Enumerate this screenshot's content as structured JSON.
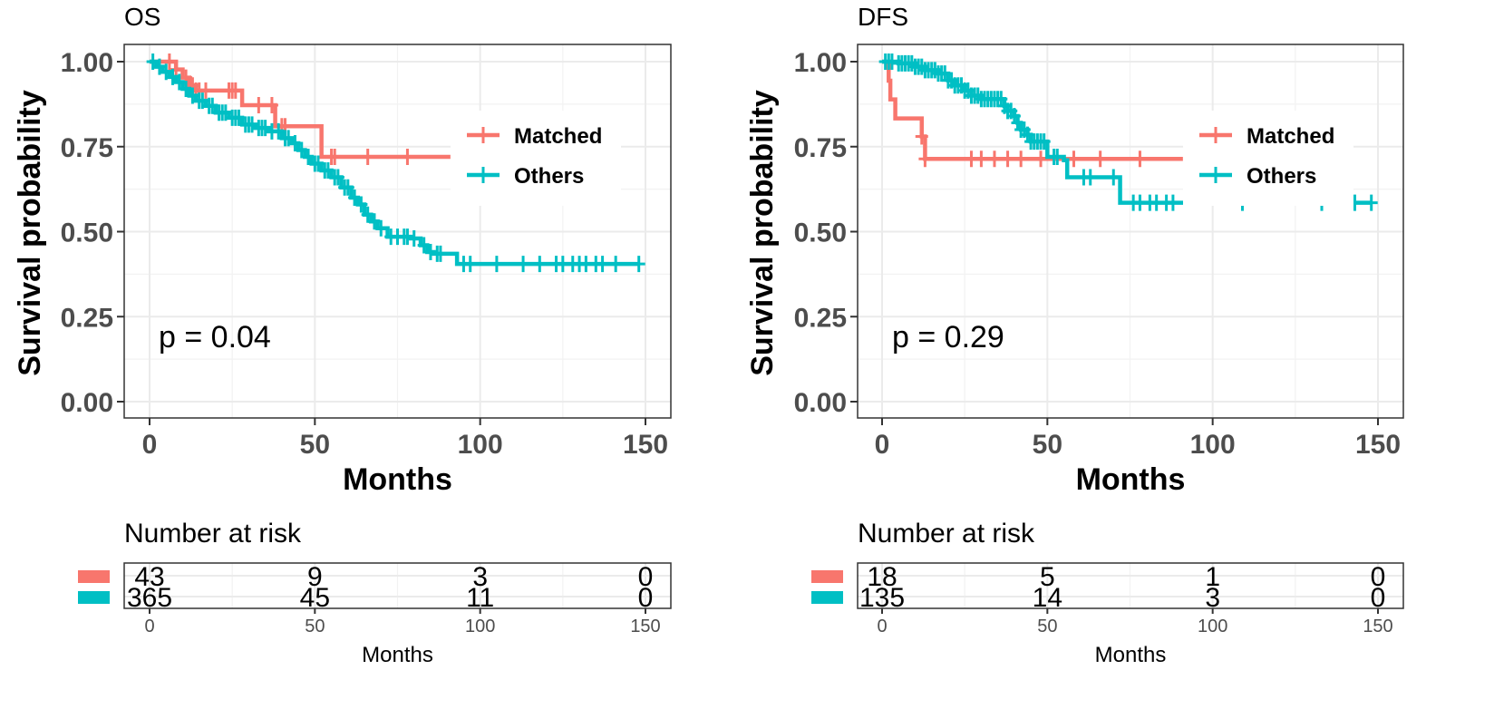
{
  "chart_data": [
    {
      "type": "line",
      "subtype": "kaplan-meier",
      "title": "OS",
      "xlabel": "Months",
      "ylabel": "Survival probability",
      "xlim": [
        -7.5,
        157.5
      ],
      "ylim": [
        -0.05,
        1.05
      ],
      "xticks": [
        0,
        50,
        100,
        150
      ],
      "xtick_labels": [
        "0",
        "50",
        "100",
        "150"
      ],
      "yticks": [
        0,
        0.25,
        0.5,
        0.75,
        1.0
      ],
      "ytick_labels": [
        "0.00",
        "0.25",
        "0.50",
        "0.75",
        "1.00"
      ],
      "grid": true,
      "legend_position": "right-inside",
      "annotation": "p = 0.04",
      "series": [
        {
          "name": "Matched",
          "color": "#F8766D",
          "steps": [
            [
              0,
              1.0
            ],
            [
              8,
              0.977
            ],
            [
              10,
              0.953
            ],
            [
              12,
              0.93
            ],
            [
              14,
              0.915
            ],
            [
              28,
              0.872
            ],
            [
              38,
              0.81
            ],
            [
              52,
              0.72
            ],
            [
              91,
              0.72
            ]
          ],
          "censor": [
            6,
            8,
            11,
            13,
            14,
            15,
            17,
            24,
            25,
            26,
            33,
            37,
            40,
            41,
            55,
            56,
            66,
            78
          ]
        },
        {
          "name": "Others",
          "color": "#00BFC4",
          "steps": [
            [
              0,
              1.0
            ],
            [
              2,
              0.985
            ],
            [
              4,
              0.97
            ],
            [
              6,
              0.955
            ],
            [
              8,
              0.94
            ],
            [
              10,
              0.92
            ],
            [
              12,
              0.9
            ],
            [
              14,
              0.885
            ],
            [
              17,
              0.87
            ],
            [
              20,
              0.85
            ],
            [
              24,
              0.835
            ],
            [
              28,
              0.815
            ],
            [
              32,
              0.805
            ],
            [
              36,
              0.795
            ],
            [
              40,
              0.775
            ],
            [
              43,
              0.76
            ],
            [
              45,
              0.74
            ],
            [
              47,
              0.72
            ],
            [
              49,
              0.7
            ],
            [
              52,
              0.68
            ],
            [
              55,
              0.66
            ],
            [
              58,
              0.63
            ],
            [
              61,
              0.6
            ],
            [
              63,
              0.58
            ],
            [
              65,
              0.55
            ],
            [
              67,
              0.53
            ],
            [
              69,
              0.51
            ],
            [
              72,
              0.485
            ],
            [
              79,
              0.48
            ],
            [
              82,
              0.46
            ],
            [
              84,
              0.44
            ],
            [
              86,
              0.435
            ],
            [
              92,
              0.435
            ],
            [
              93,
              0.405
            ],
            [
              148,
              0.405
            ]
          ],
          "censor": [
            1,
            3,
            5,
            7,
            9,
            11,
            13,
            15,
            16,
            18,
            19,
            21,
            22,
            23,
            25,
            26,
            27,
            29,
            30,
            31,
            33,
            34,
            35,
            37,
            39,
            41,
            42,
            44,
            46,
            48,
            50,
            51,
            53,
            54,
            56,
            57,
            59,
            60,
            62,
            64,
            66,
            68,
            70,
            73,
            75,
            77,
            78,
            80,
            83,
            85,
            87,
            88,
            95,
            97,
            105,
            113,
            118,
            123,
            125,
            128,
            130,
            132,
            135,
            137,
            141,
            148
          ]
        }
      ],
      "risk_table": {
        "title": "Number at risk",
        "xlabel": "Months",
        "times": [
          0,
          50,
          100,
          150
        ],
        "rows": [
          {
            "name": "Matched",
            "color": "#F8766D",
            "values": [
              "43",
              "9",
              "3",
              "0"
            ]
          },
          {
            "name": "Others",
            "color": "#00BFC4",
            "values": [
              "365",
              "45",
              "11",
              "0"
            ]
          }
        ]
      }
    },
    {
      "type": "line",
      "subtype": "kaplan-meier",
      "title": "DFS",
      "xlabel": "Months",
      "ylabel": "Survival probability",
      "xlim": [
        -7.5,
        157.5
      ],
      "ylim": [
        -0.05,
        1.05
      ],
      "xticks": [
        0,
        50,
        100,
        150
      ],
      "xtick_labels": [
        "0",
        "50",
        "100",
        "150"
      ],
      "yticks": [
        0,
        0.25,
        0.5,
        0.75,
        1.0
      ],
      "ytick_labels": [
        "0.00",
        "0.25",
        "0.50",
        "0.75",
        "1.00"
      ],
      "grid": true,
      "legend_position": "right-inside",
      "annotation": "p = 0.29",
      "series": [
        {
          "name": "Matched",
          "color": "#F8766D",
          "steps": [
            [
              0,
              1.0
            ],
            [
              2,
              0.944
            ],
            [
              2.5,
              0.889
            ],
            [
              4,
              0.833
            ],
            [
              12,
              0.78
            ],
            [
              13,
              0.714
            ],
            [
              91,
              0.714
            ]
          ],
          "censor": [
            12,
            13,
            27,
            30,
            34,
            38,
            42,
            48,
            58,
            66,
            78
          ]
        },
        {
          "name": "Others",
          "color": "#00BFC4",
          "steps": [
            [
              0,
              1.0
            ],
            [
              5,
              0.995
            ],
            [
              10,
              0.985
            ],
            [
              13,
              0.975
            ],
            [
              17,
              0.965
            ],
            [
              20,
              0.945
            ],
            [
              22,
              0.93
            ],
            [
              25,
              0.915
            ],
            [
              27,
              0.9
            ],
            [
              30,
              0.89
            ],
            [
              35,
              0.89
            ],
            [
              37,
              0.87
            ],
            [
              38,
              0.855
            ],
            [
              40,
              0.84
            ],
            [
              41,
              0.82
            ],
            [
              42,
              0.8
            ],
            [
              44,
              0.785
            ],
            [
              45,
              0.765
            ],
            [
              49,
              0.765
            ],
            [
              50,
              0.72
            ],
            [
              55,
              0.71
            ],
            [
              56,
              0.66
            ],
            [
              71,
              0.66
            ],
            [
              72,
              0.585
            ],
            [
              148,
              0.585
            ]
          ],
          "censor": [
            1,
            2,
            3,
            5,
            6,
            7,
            8,
            9,
            10,
            11,
            12,
            13,
            14,
            15,
            16,
            17,
            18,
            19,
            20,
            21,
            22,
            23,
            24,
            25,
            26,
            27,
            28,
            29,
            30,
            31,
            32,
            33,
            34,
            35,
            36,
            37,
            38,
            39,
            40,
            41,
            42,
            43,
            44,
            45,
            46,
            47,
            48,
            49,
            52,
            53,
            61,
            63,
            70,
            76,
            78,
            81,
            83,
            86,
            88,
            109,
            133,
            143,
            148
          ]
        }
      ],
      "risk_table": {
        "title": "Number at risk",
        "xlabel": "Months",
        "times": [
          0,
          50,
          100,
          150
        ],
        "rows": [
          {
            "name": "Matched",
            "color": "#F8766D",
            "values": [
              "18",
              "5",
              "1",
              "0"
            ]
          },
          {
            "name": "Others",
            "color": "#00BFC4",
            "values": [
              "135",
              "14",
              "3",
              "0"
            ]
          }
        ]
      }
    }
  ]
}
